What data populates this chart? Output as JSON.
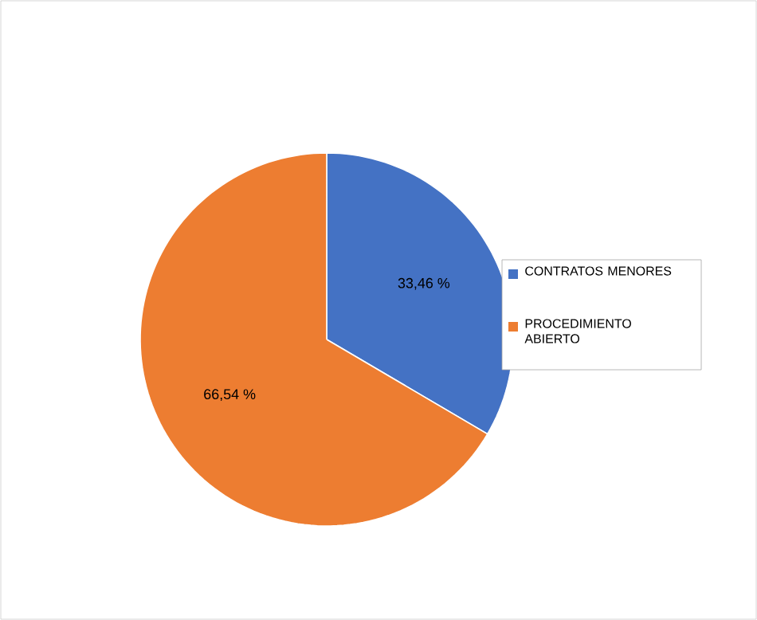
{
  "chart_data": {
    "type": "pie",
    "categories": [
      "CONTRATOS MENORES",
      "PROCEDIMIENTO ABIERTO"
    ],
    "values": [
      33.46,
      66.54
    ],
    "value_labels": [
      "33,46 %",
      "66,54 %"
    ],
    "colors": [
      "#4472c4",
      "#ed7d31"
    ],
    "legend": "right"
  }
}
